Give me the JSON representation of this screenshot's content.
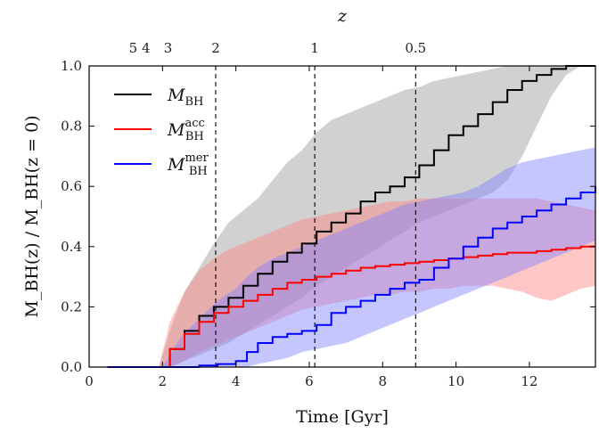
{
  "chart_data": {
    "type": "line",
    "xlabel": "Time [Gyr]",
    "ylabel": "M_BH(z) / M_BH(z = 0)",
    "top_axis_label": "z",
    "xlim": [
      0,
      13.8
    ],
    "ylim": [
      0,
      1.0
    ],
    "x_ticks": [
      0,
      2,
      4,
      6,
      8,
      10,
      12
    ],
    "x_tick_labels": [
      "0",
      "2",
      "4",
      "6",
      "8",
      "10",
      "12"
    ],
    "y_ticks": [
      0,
      0.2,
      0.4,
      0.6,
      0.8,
      1.0
    ],
    "y_tick_labels": [
      "0.0",
      "0.2",
      "0.4",
      "0.6",
      "0.8",
      "1.0"
    ],
    "top_ticks": [
      {
        "label": "5",
        "time": 1.2
      },
      {
        "label": "4",
        "time": 1.55
      },
      {
        "label": "3",
        "time": 2.15
      },
      {
        "label": "2",
        "time": 3.45
      },
      {
        "label": "1",
        "time": 6.15
      },
      {
        "label": "0.5",
        "time": 8.9
      }
    ],
    "vlines": [
      3.45,
      6.15,
      8.9
    ],
    "legend_position": "top-left",
    "series": [
      {
        "name": "M_BH",
        "legend_main": "M",
        "legend_sub": "BH",
        "legend_sup": "",
        "color": "#000000",
        "band_color": "#999999",
        "x": [
          0.5,
          1.9,
          2.2,
          2.6,
          3.0,
          3.4,
          3.8,
          4.2,
          4.6,
          5.0,
          5.4,
          5.8,
          6.2,
          6.6,
          7.0,
          7.4,
          7.8,
          8.2,
          8.6,
          9.0,
          9.4,
          9.8,
          10.2,
          10.6,
          11.0,
          11.4,
          11.8,
          12.2,
          12.6,
          13.0,
          13.4,
          13.8
        ],
        "y": [
          0.0,
          0.0,
          0.06,
          0.12,
          0.17,
          0.2,
          0.23,
          0.27,
          0.31,
          0.35,
          0.38,
          0.41,
          0.45,
          0.48,
          0.51,
          0.55,
          0.58,
          0.6,
          0.63,
          0.67,
          0.72,
          0.77,
          0.8,
          0.84,
          0.88,
          0.92,
          0.95,
          0.97,
          0.99,
          1.0,
          1.0,
          1.0
        ],
        "lower": [
          0.0,
          0.0,
          0.0,
          0.02,
          0.04,
          0.06,
          0.08,
          0.11,
          0.14,
          0.17,
          0.2,
          0.23,
          0.27,
          0.3,
          0.33,
          0.36,
          0.39,
          0.42,
          0.45,
          0.48,
          0.5,
          0.52,
          0.54,
          0.56,
          0.58,
          0.62,
          0.7,
          0.8,
          0.9,
          0.97,
          1.0,
          1.0
        ],
        "upper": [
          0.0,
          0.0,
          0.12,
          0.25,
          0.33,
          0.41,
          0.48,
          0.52,
          0.56,
          0.62,
          0.68,
          0.72,
          0.78,
          0.82,
          0.84,
          0.86,
          0.88,
          0.9,
          0.92,
          0.93,
          0.95,
          0.96,
          0.97,
          0.98,
          0.99,
          1.0,
          1.0,
          1.0,
          1.0,
          1.0,
          1.0,
          1.0
        ]
      },
      {
        "name": "M_BH^acc",
        "legend_main": "M",
        "legend_sub": "BH",
        "legend_sup": "acc",
        "color": "#ff0000",
        "band_color": "#ff8080",
        "x": [
          0.5,
          1.9,
          2.2,
          2.6,
          3.0,
          3.4,
          3.8,
          4.2,
          4.6,
          5.0,
          5.4,
          5.8,
          6.2,
          6.6,
          7.0,
          7.4,
          7.8,
          8.2,
          8.6,
          9.0,
          9.4,
          9.8,
          10.2,
          10.6,
          11.0,
          11.4,
          11.8,
          12.2,
          12.6,
          13.0,
          13.4,
          13.8
        ],
        "y": [
          0.0,
          0.0,
          0.06,
          0.11,
          0.15,
          0.18,
          0.2,
          0.22,
          0.24,
          0.26,
          0.28,
          0.29,
          0.3,
          0.31,
          0.32,
          0.33,
          0.335,
          0.34,
          0.345,
          0.35,
          0.355,
          0.36,
          0.365,
          0.37,
          0.375,
          0.38,
          0.38,
          0.385,
          0.39,
          0.395,
          0.4,
          0.4
        ],
        "lower": [
          0.0,
          0.0,
          0.0,
          0.02,
          0.05,
          0.07,
          0.09,
          0.11,
          0.13,
          0.15,
          0.17,
          0.19,
          0.2,
          0.21,
          0.22,
          0.23,
          0.24,
          0.24,
          0.25,
          0.25,
          0.26,
          0.26,
          0.27,
          0.27,
          0.27,
          0.26,
          0.25,
          0.23,
          0.22,
          0.24,
          0.26,
          0.27
        ],
        "upper": [
          0.0,
          0.0,
          0.15,
          0.25,
          0.32,
          0.36,
          0.39,
          0.41,
          0.43,
          0.45,
          0.47,
          0.49,
          0.5,
          0.51,
          0.52,
          0.53,
          0.54,
          0.55,
          0.55,
          0.56,
          0.56,
          0.56,
          0.56,
          0.56,
          0.56,
          0.56,
          0.56,
          0.56,
          0.55,
          0.54,
          0.53,
          0.52
        ]
      },
      {
        "name": "M_BH^mer",
        "legend_main": "M",
        "legend_sub": "BH",
        "legend_sup": "mer",
        "color": "#0000ff",
        "band_color": "#8080ff",
        "x": [
          0.5,
          2.0,
          2.5,
          3.0,
          3.5,
          4.0,
          4.3,
          4.6,
          5.0,
          5.4,
          5.8,
          6.2,
          6.6,
          7.0,
          7.4,
          7.8,
          8.2,
          8.6,
          9.0,
          9.4,
          9.8,
          10.2,
          10.6,
          11.0,
          11.4,
          11.8,
          12.2,
          12.6,
          13.0,
          13.4,
          13.8
        ],
        "y": [
          0.0,
          0.0,
          0.0,
          0.005,
          0.01,
          0.02,
          0.05,
          0.08,
          0.1,
          0.11,
          0.12,
          0.14,
          0.18,
          0.2,
          0.22,
          0.24,
          0.26,
          0.28,
          0.29,
          0.33,
          0.36,
          0.4,
          0.43,
          0.46,
          0.48,
          0.5,
          0.52,
          0.54,
          0.56,
          0.58,
          0.6
        ],
        "lower": [
          0.0,
          0.0,
          0.0,
          0.0,
          0.0,
          0.0,
          0.0,
          0.01,
          0.02,
          0.03,
          0.05,
          0.06,
          0.07,
          0.08,
          0.1,
          0.12,
          0.14,
          0.16,
          0.18,
          0.2,
          0.22,
          0.24,
          0.26,
          0.28,
          0.3,
          0.32,
          0.34,
          0.36,
          0.38,
          0.4,
          0.42
        ],
        "upper": [
          0.0,
          0.0,
          0.1,
          0.16,
          0.22,
          0.26,
          0.3,
          0.33,
          0.36,
          0.38,
          0.4,
          0.42,
          0.44,
          0.46,
          0.48,
          0.5,
          0.52,
          0.54,
          0.55,
          0.56,
          0.57,
          0.58,
          0.6,
          0.63,
          0.66,
          0.68,
          0.69,
          0.7,
          0.71,
          0.72,
          0.73
        ]
      }
    ]
  }
}
